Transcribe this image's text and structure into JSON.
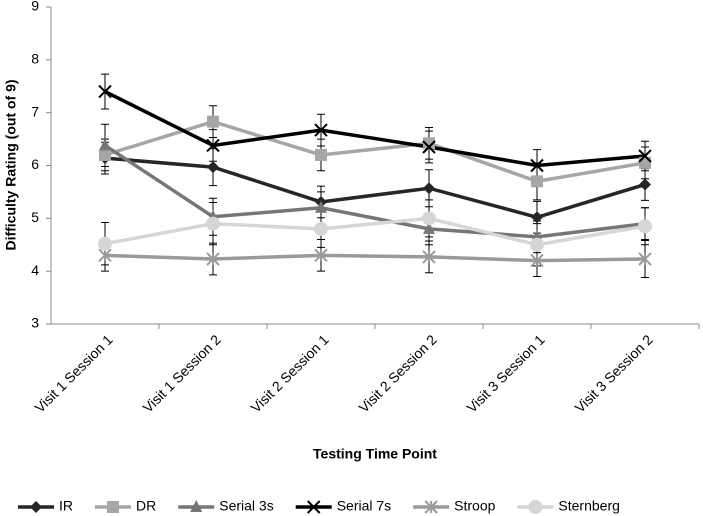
{
  "chart_data": {
    "type": "line",
    "x_label": "Testing Time Point",
    "y_label": "Difficulty Rating (out of 9)",
    "categories": [
      "Visit 1 Session 1",
      "Visit 1 Session 2",
      "Visit 2 Session 1",
      "Visit 2 Session 2",
      "Visit 3 Session 1",
      "Visit 3 Session 2"
    ],
    "ylim": [
      3,
      9
    ],
    "yticks": [
      3,
      4,
      5,
      6,
      7,
      8,
      9
    ],
    "grid": false,
    "legend": "bottom",
    "series": [
      {
        "name": "IR",
        "color": "#262626",
        "marker": "diamond",
        "values": [
          6.14,
          5.97,
          5.31,
          5.57,
          5.02,
          5.64
        ],
        "errors": [
          0.3,
          0.35,
          0.3,
          0.35,
          0.3,
          0.3
        ]
      },
      {
        "name": "DR",
        "color": "#a6a6a6",
        "marker": "square",
        "values": [
          6.2,
          6.83,
          6.2,
          6.42,
          5.7,
          6.05
        ],
        "errors": [
          0.3,
          0.3,
          0.3,
          0.3,
          0.35,
          0.3
        ]
      },
      {
        "name": "Serial 3s",
        "color": "#767676",
        "marker": "triangle",
        "values": [
          6.38,
          5.03,
          5.2,
          4.8,
          4.65,
          4.9
        ],
        "errors": [
          0.4,
          0.35,
          0.3,
          0.3,
          0.3,
          0.3
        ]
      },
      {
        "name": "Serial 7s",
        "color": "#000000",
        "marker": "x",
        "values": [
          7.4,
          6.38,
          6.67,
          6.35,
          6.0,
          6.18
        ],
        "errors": [
          0.33,
          0.3,
          0.3,
          0.3,
          0.3,
          0.28
        ]
      },
      {
        "name": "Stroop",
        "color": "#9a9a9a",
        "marker": "star",
        "values": [
          4.3,
          4.23,
          4.3,
          4.27,
          4.2,
          4.23
        ],
        "errors": [
          0.3,
          0.3,
          0.3,
          0.3,
          0.3,
          0.35
        ]
      },
      {
        "name": "Sternberg",
        "color": "#d6d6d6",
        "marker": "circle",
        "values": [
          4.52,
          4.9,
          4.8,
          5.0,
          4.5,
          4.85
        ],
        "errors": [
          0.4,
          0.4,
          0.35,
          0.35,
          0.4,
          0.35
        ]
      }
    ]
  }
}
